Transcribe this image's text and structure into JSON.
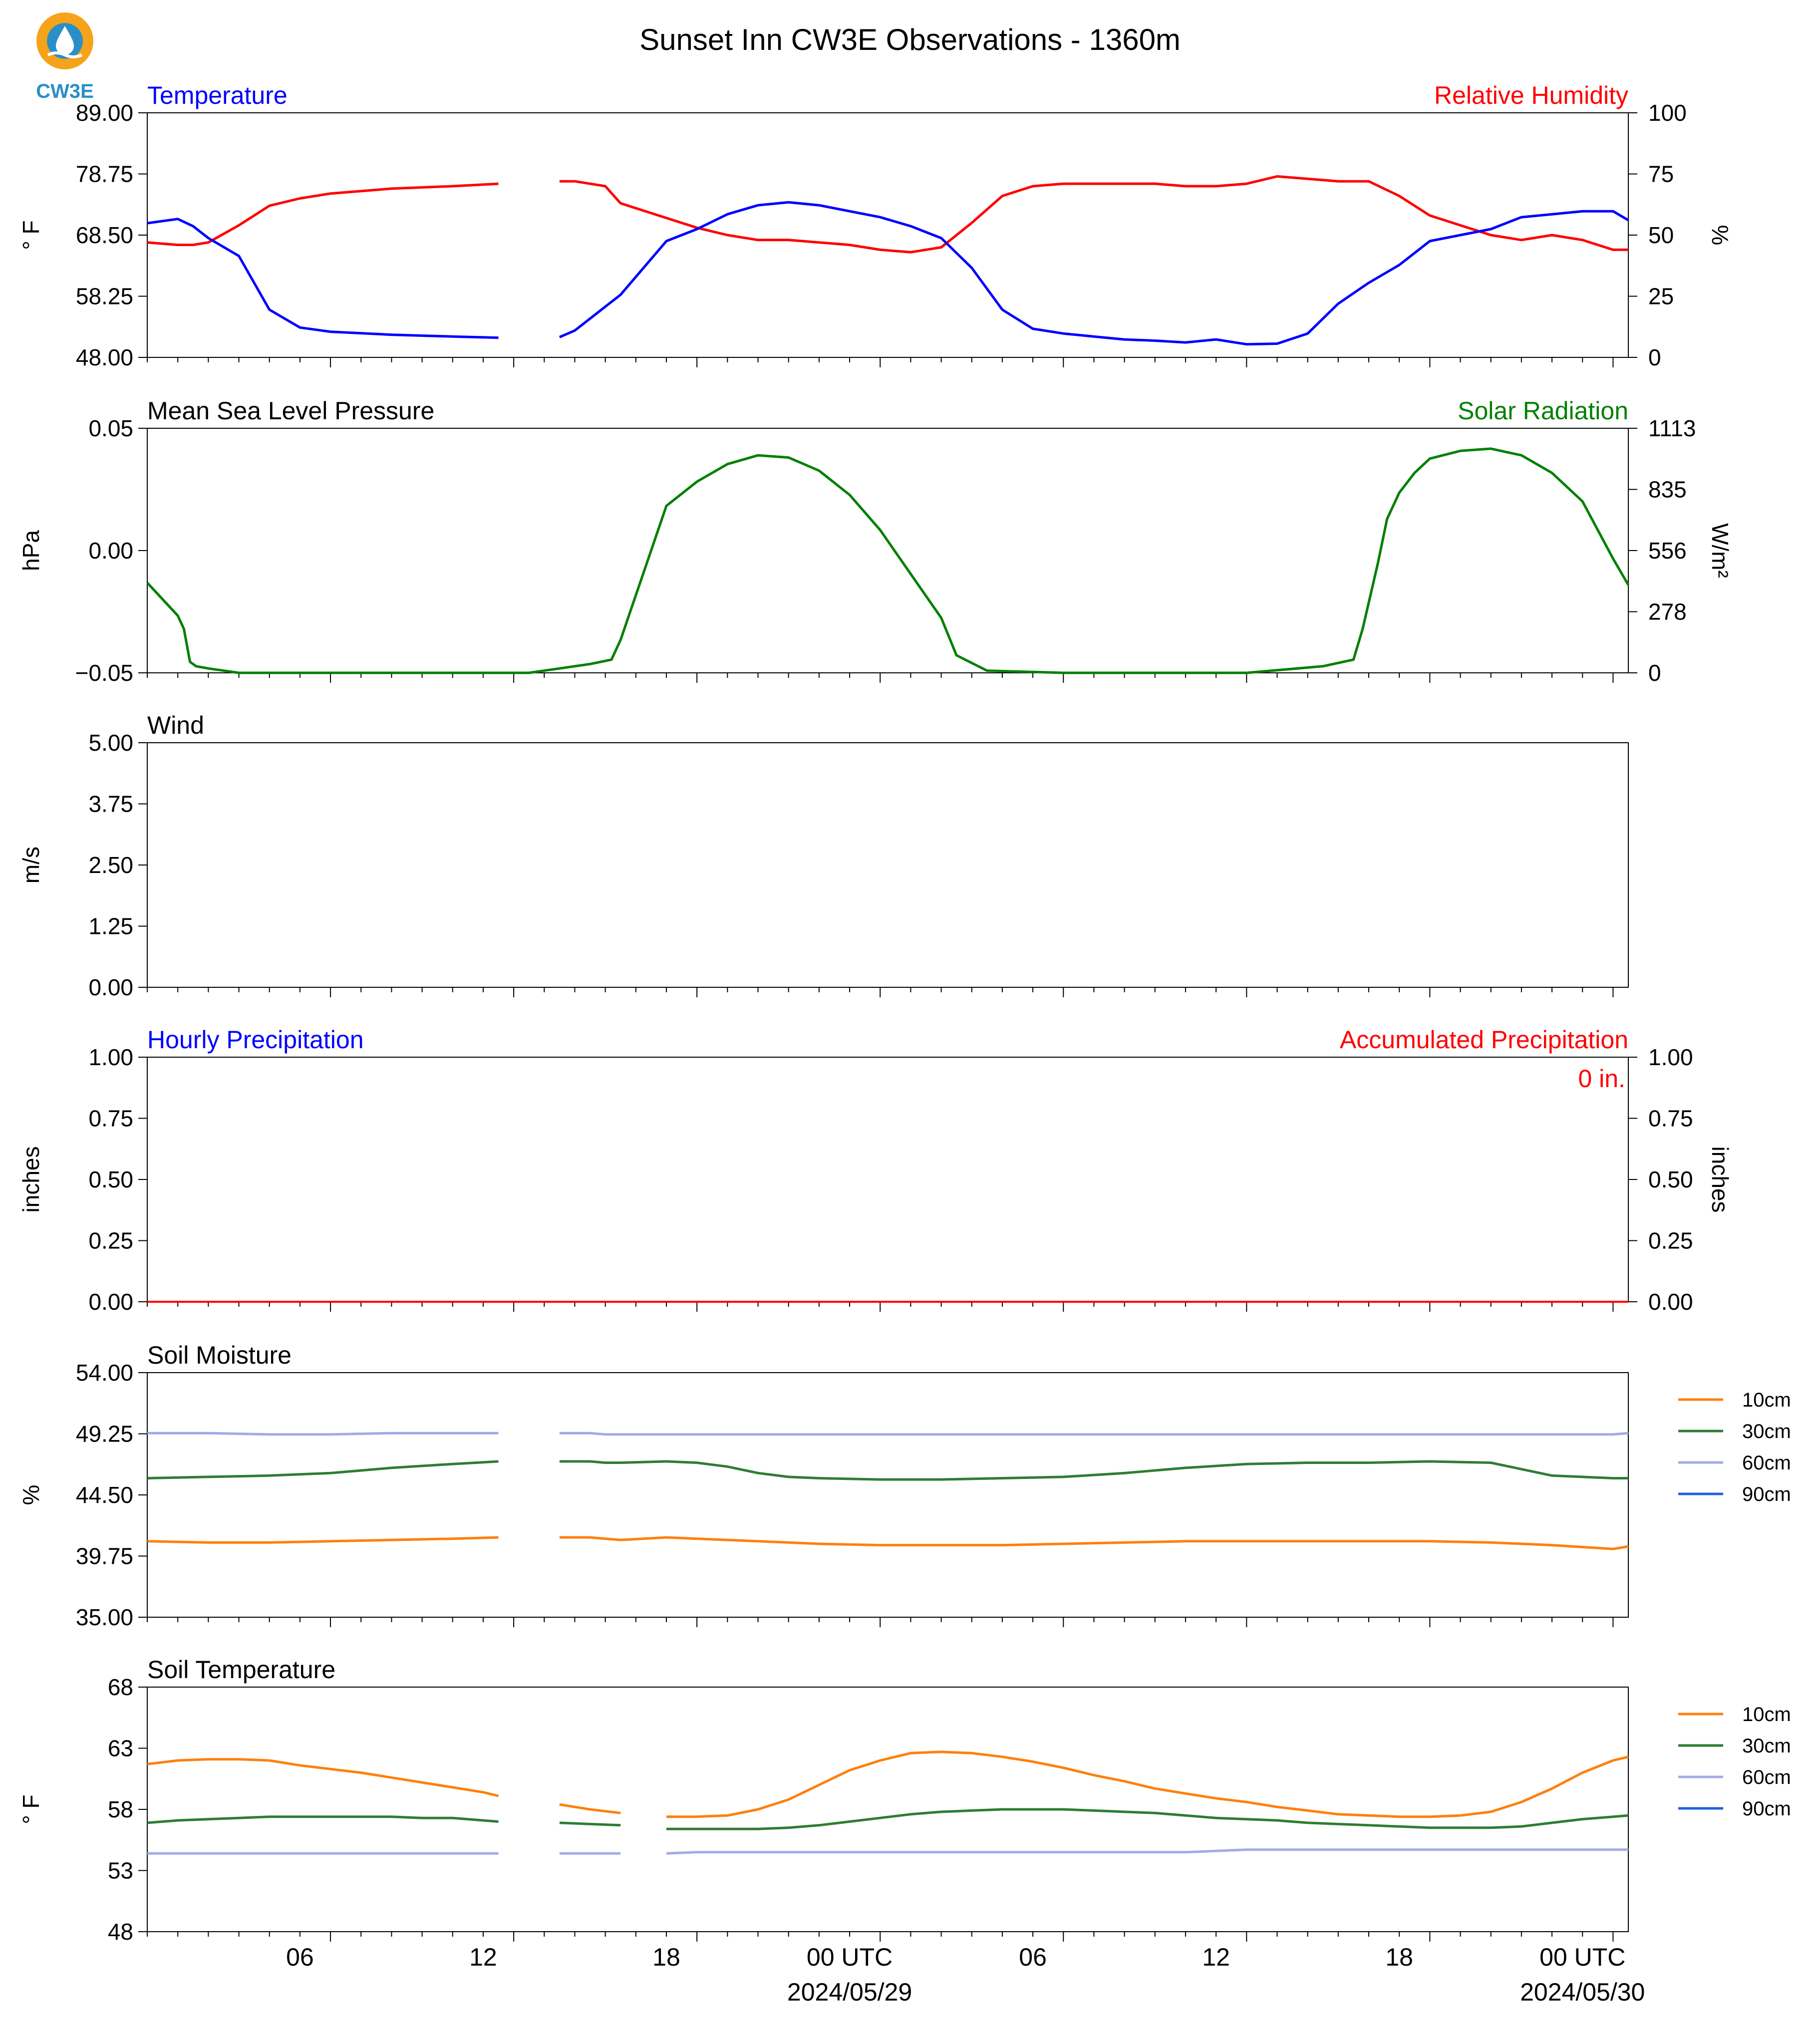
{
  "figure": {
    "title": "Sunset Inn CW3E Observations - 1360m",
    "logo_text": "CW3E",
    "x_axis": {
      "start": "2024-05-28 01:00 UTC",
      "end": "2024-05-30 01:00 UTC",
      "tick_labels": [
        "06",
        "12",
        "18",
        "00 UTC",
        "06",
        "12",
        "18",
        "00 UTC"
      ],
      "date_labels": [
        "2024/05/29",
        "2024/05/30"
      ]
    }
  },
  "chart_data": [
    {
      "type": "line",
      "panel": "temperature-humidity",
      "left_title": "Temperature",
      "right_title": "Relative Humidity",
      "ylabel": "° F",
      "ylabel_right": "%",
      "ylim": [
        48,
        89
      ],
      "ylim_right": [
        0,
        100
      ],
      "yticks": [
        "48.00",
        "58.25",
        "68.50",
        "78.75",
        "89.00"
      ],
      "yticks_right": [
        "0",
        "25",
        "50",
        "75",
        "100"
      ],
      "colors": {
        "left": "#0000ff",
        "right": "#ff0000"
      },
      "hours": [
        0,
        1,
        1.5,
        2,
        3,
        4,
        5,
        6,
        8,
        10,
        11.5,
        12.5,
        13.5,
        14,
        15,
        15.5,
        17,
        18,
        19,
        20,
        21,
        22,
        23,
        24,
        25,
        26,
        27,
        28,
        29,
        30,
        31,
        32,
        33,
        34,
        35,
        36,
        37,
        38,
        39,
        40,
        41,
        42,
        43,
        44,
        45,
        46,
        47,
        48,
        48.5
      ],
      "temperature": [
        70.5,
        71.2,
        70.0,
        68.0,
        65.0,
        56.0,
        53.0,
        52.3,
        51.8,
        51.5,
        51.3,
        null,
        51.4,
        52.5,
        56.5,
        58.5,
        67.5,
        69.5,
        72.0,
        73.5,
        74.0,
        73.5,
        72.5,
        71.5,
        70.0,
        68.0,
        63.0,
        56.0,
        52.8,
        52.0,
        51.5,
        51.0,
        50.8,
        50.5,
        51.0,
        50.2,
        50.3,
        52.0,
        57.0,
        60.5,
        63.5,
        67.5,
        68.5,
        69.5,
        71.5,
        72.0,
        72.5,
        72.5,
        71.0
      ],
      "humidity": [
        47,
        46,
        46,
        47,
        54,
        62,
        65,
        67,
        69,
        70,
        71,
        null,
        72,
        72,
        70,
        63,
        57,
        53,
        50,
        48,
        48,
        47,
        46,
        44,
        43,
        45,
        55,
        66,
        70,
        71,
        71,
        71,
        71,
        70,
        70,
        71,
        74,
        73,
        72,
        72,
        66,
        58,
        54,
        50,
        48,
        50,
        48,
        44,
        44
      ]
    },
    {
      "type": "line",
      "panel": "pressure-solar",
      "left_title": "Mean Sea Level Pressure",
      "right_title": "Solar Radiation",
      "ylabel": "hPa",
      "ylabel_right": "W/m²",
      "ylim": [
        -0.055,
        0.055
      ],
      "ylim_right": [
        0,
        1113
      ],
      "yticks": [
        "−0.05",
        "0.00",
        "0.05"
      ],
      "yticks_right": [
        "0",
        "278",
        "556",
        "835",
        "1113"
      ],
      "colors": {
        "right": "#008000"
      },
      "hours": [
        0,
        1,
        1.2,
        1.4,
        1.6,
        2,
        3,
        6,
        9,
        11.5,
        12.5,
        13.5,
        14.5,
        15.2,
        15.5,
        17,
        18,
        19,
        20,
        21,
        22,
        23,
        24,
        25,
        26,
        26.5,
        27.5,
        30,
        33,
        36,
        38.5,
        39.5,
        39.8,
        40.3,
        40.6,
        41,
        41.5,
        42,
        43,
        44,
        45,
        46,
        47,
        47.5,
        48,
        48.5
      ],
      "solar": [
        410,
        260,
        200,
        50,
        30,
        20,
        0,
        0,
        0,
        0,
        0,
        20,
        40,
        60,
        150,
        760,
        870,
        950,
        990,
        980,
        920,
        810,
        650,
        450,
        250,
        80,
        10,
        0,
        0,
        0,
        30,
        60,
        200,
        500,
        700,
        820,
        910,
        975,
        1010,
        1020,
        990,
        910,
        780,
        650,
        520,
        400
      ]
    },
    {
      "type": "line",
      "panel": "wind",
      "left_title": "Wind",
      "ylabel": "m/s",
      "ylim": [
        0,
        5
      ],
      "yticks": [
        "0.00",
        "1.25",
        "2.50",
        "3.75",
        "5.00"
      ]
    },
    {
      "type": "line",
      "panel": "precipitation",
      "left_title": "Hourly Precipitation",
      "right_title": "Accumulated Precipitation",
      "annotation": "0 in.",
      "ylabel": "inches",
      "ylabel_right": "inches",
      "ylim": [
        0,
        1
      ],
      "ylim_right": [
        0,
        1
      ],
      "yticks": [
        "0.00",
        "0.25",
        "0.50",
        "0.75",
        "1.00"
      ],
      "yticks_right": [
        "0.00",
        "0.25",
        "0.50",
        "0.75",
        "1.00"
      ],
      "colors": {
        "left": "#0000ff",
        "right": "#ff0000"
      },
      "hours": [
        0,
        48.5
      ],
      "accumulated": [
        0,
        0
      ]
    },
    {
      "type": "line",
      "panel": "soil-moisture",
      "left_title": "Soil Moisture",
      "ylabel": "%",
      "ylim": [
        35,
        54
      ],
      "yticks": [
        "35.00",
        "39.75",
        "44.50",
        "49.25",
        "54.00"
      ],
      "legend": "right",
      "hours": [
        0,
        2,
        4,
        6,
        8,
        10,
        11.5,
        12.5,
        13.5,
        14.5,
        15,
        15.5,
        17,
        18,
        19,
        20,
        21,
        22,
        24,
        26,
        28,
        30,
        32,
        34,
        36,
        38,
        40,
        42,
        44,
        46,
        48,
        48.5
      ],
      "series": [
        {
          "name": "10cm",
          "color": "#ff7f0e",
          "values": [
            40.9,
            40.8,
            40.8,
            40.9,
            41.0,
            41.1,
            41.2,
            null,
            41.2,
            41.2,
            41.1,
            41.0,
            41.2,
            41.1,
            41.0,
            40.9,
            40.8,
            40.7,
            40.6,
            40.6,
            40.6,
            40.7,
            40.8,
            40.9,
            40.9,
            40.9,
            40.9,
            40.9,
            40.8,
            40.6,
            40.3,
            40.5
          ]
        },
        {
          "name": "30cm",
          "color": "#2e7d32",
          "values": [
            45.8,
            45.9,
            46.0,
            46.2,
            46.6,
            46.9,
            47.1,
            null,
            47.1,
            47.1,
            47.0,
            47.0,
            47.1,
            47.0,
            46.7,
            46.2,
            45.9,
            45.8,
            45.7,
            45.7,
            45.8,
            45.9,
            46.2,
            46.6,
            46.9,
            47.0,
            47.0,
            47.1,
            47.0,
            46.0,
            45.8,
            45.8
          ]
        },
        {
          "name": "60cm",
          "color": "#a4a9e8",
          "values": [
            49.3,
            49.3,
            49.2,
            49.2,
            49.3,
            49.3,
            49.3,
            null,
            49.3,
            49.3,
            49.2,
            49.2,
            49.2,
            49.2,
            49.2,
            49.2,
            49.2,
            49.2,
            49.2,
            49.2,
            49.2,
            49.2,
            49.2,
            49.2,
            49.2,
            49.2,
            49.2,
            49.2,
            49.2,
            49.2,
            49.2,
            49.3
          ]
        },
        {
          "name": "90cm",
          "color": "#1f5fe0",
          "values": []
        }
      ]
    },
    {
      "type": "line",
      "panel": "soil-temperature",
      "left_title": "Soil Temperature",
      "ylabel": "° F",
      "ylim": [
        48,
        68
      ],
      "yticks": [
        "48",
        "53",
        "58",
        "63",
        "68"
      ],
      "legend": "right",
      "hours": [
        0,
        1,
        2,
        3,
        4,
        5,
        6,
        7,
        8,
        9,
        10,
        11,
        11.5,
        12.5,
        13.5,
        14.5,
        15.5,
        16,
        17,
        18,
        19,
        20,
        21,
        22,
        23,
        24,
        25,
        26,
        27,
        28,
        29,
        30,
        31,
        32,
        33,
        34,
        35,
        36,
        37,
        38,
        39,
        40,
        41,
        42,
        43,
        44,
        45,
        46,
        47,
        48,
        48.5
      ],
      "series": [
        {
          "name": "10cm",
          "color": "#ff7f0e",
          "values": [
            61.7,
            62.0,
            62.1,
            62.1,
            62.0,
            61.6,
            61.3,
            61.0,
            60.6,
            60.2,
            59.8,
            59.4,
            59.1,
            null,
            58.4,
            58.0,
            57.7,
            null,
            57.4,
            57.4,
            57.5,
            58.0,
            58.8,
            60.0,
            61.2,
            62.0,
            62.6,
            62.7,
            62.6,
            62.3,
            61.9,
            61.4,
            60.8,
            60.3,
            59.7,
            59.3,
            58.9,
            58.6,
            58.2,
            57.9,
            57.6,
            57.5,
            57.4,
            57.4,
            57.5,
            57.8,
            58.6,
            59.7,
            61.0,
            62.0,
            62.3
          ]
        },
        {
          "name": "30cm",
          "color": "#2e7d32",
          "values": [
            56.9,
            57.1,
            57.2,
            57.3,
            57.4,
            57.4,
            57.4,
            57.4,
            57.4,
            57.3,
            57.3,
            57.1,
            57.0,
            null,
            56.9,
            56.8,
            56.7,
            null,
            56.4,
            56.4,
            56.4,
            56.4,
            56.5,
            56.7,
            57.0,
            57.3,
            57.6,
            57.8,
            57.9,
            58.0,
            58.0,
            58.0,
            57.9,
            57.8,
            57.7,
            57.5,
            57.3,
            57.2,
            57.1,
            56.9,
            56.8,
            56.7,
            56.6,
            56.5,
            56.5,
            56.5,
            56.6,
            56.9,
            57.2,
            57.4,
            57.5
          ]
        },
        {
          "name": "60cm",
          "color": "#a4a9e8",
          "values": [
            54.4,
            54.4,
            54.4,
            54.4,
            54.4,
            54.4,
            54.4,
            54.4,
            54.4,
            54.4,
            54.4,
            54.4,
            54.4,
            null,
            54.4,
            54.4,
            54.4,
            null,
            54.4,
            54.5,
            54.5,
            54.5,
            54.5,
            54.5,
            54.5,
            54.5,
            54.5,
            54.5,
            54.5,
            54.5,
            54.5,
            54.5,
            54.5,
            54.5,
            54.5,
            54.5,
            54.6,
            54.7,
            54.7,
            54.7,
            54.7,
            54.7,
            54.7,
            54.7,
            54.7,
            54.7,
            54.7,
            54.7,
            54.7,
            54.7,
            54.7
          ]
        },
        {
          "name": "90cm",
          "color": "#1f5fe0",
          "values": []
        }
      ]
    }
  ]
}
